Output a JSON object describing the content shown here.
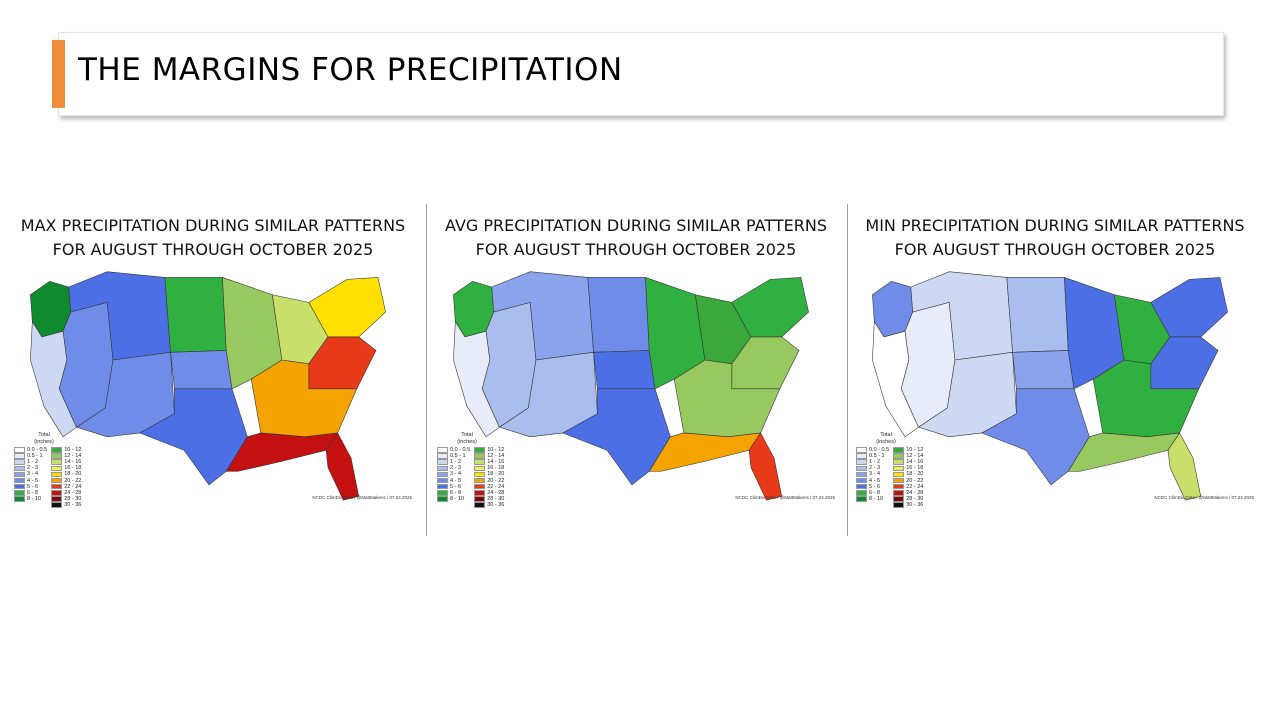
{
  "slide": {
    "title": "THE MARGINS FOR PRECIPITATION",
    "accent_color": "#f08c3a"
  },
  "legend": {
    "title_line1": "Total",
    "title_line2": "(inches)",
    "bins": [
      {
        "label": "0.0 - 0.5",
        "color": "#ffffff"
      },
      {
        "label": "0.5 - 1",
        "color": "#e7ecf8"
      },
      {
        "label": "1 - 2",
        "color": "#cdd8f2"
      },
      {
        "label": "2 - 3",
        "color": "#a9bdee"
      },
      {
        "label": "3 - 4",
        "color": "#8aa3ec"
      },
      {
        "label": "4 - 5",
        "color": "#6f8ce8"
      },
      {
        "label": "5 - 6",
        "color": "#4c6fe6"
      },
      {
        "label": "6 - 8",
        "color": "#30b040"
      },
      {
        "label": "8 - 10",
        "color": "#138a2c"
      },
      {
        "label": "10 - 12",
        "color": "#3aa83a"
      },
      {
        "label": "12 - 14",
        "color": "#98c860"
      },
      {
        "label": "14 - 16",
        "color": "#c8e06a"
      },
      {
        "label": "16 - 18",
        "color": "#eaf05a"
      },
      {
        "label": "18 - 20",
        "color": "#ffe000"
      },
      {
        "label": "20 - 22",
        "color": "#f4a300"
      },
      {
        "label": "22 - 24",
        "color": "#e83a18"
      },
      {
        "label": "24 - 28",
        "color": "#c41010"
      },
      {
        "label": "28 - 30",
        "color": "#7a0a0a"
      },
      {
        "label": "30 - 36",
        "color": "#111111"
      }
    ]
  },
  "panels": [
    {
      "title_line1": "MAX PRECIPITATION DURING SIMILAR PATTERNS",
      "title_line2": "FOR AUGUST THROUGH OCTOBER 2025",
      "credit": "NCDC ClimDiv Data / @MattMakens / 07.24.2025",
      "regions": {
        "pacific_nw": "#0f8a2e",
        "west_coast": "#cdd8f2",
        "great_basin": "#6f8ce8",
        "rockies": "#4c6fe6",
        "plains_north": "#30b040",
        "plains_south": "#6f8ce8",
        "midwest": "#98c860",
        "great_lakes": "#c8e06a",
        "northeast": "#ffe000",
        "southeast": "#f4a300",
        "gulf": "#c41010",
        "florida": "#c41010",
        "texas": "#4c6fe6",
        "southwest": "#6f8ce8",
        "mid_atlantic": "#e83a18"
      }
    },
    {
      "title_line1": "AVG PRECIPITATION DURING SIMILAR PATTERNS",
      "title_line2": "FOR AUGUST THROUGH OCTOBER 2025",
      "credit": "NCDC ClimDiv Data / @MattMakens / 07.24.2025",
      "regions": {
        "pacific_nw": "#30b040",
        "west_coast": "#e7ecf8",
        "great_basin": "#a9bdee",
        "rockies": "#8aa3ec",
        "plains_north": "#6f8ce8",
        "plains_south": "#4c6fe6",
        "midwest": "#30b040",
        "great_lakes": "#3aa83a",
        "northeast": "#30b040",
        "southeast": "#98c860",
        "gulf": "#f4a300",
        "florida": "#e83a18",
        "texas": "#4c6fe6",
        "southwest": "#a9bdee",
        "mid_atlantic": "#98c860"
      }
    },
    {
      "title_line1": "MIN PRECIPITATION DURING SIMILAR PATTERNS",
      "title_line2": "FOR AUGUST THROUGH OCTOBER 2025",
      "credit": "NCDC ClimDiv Data / @MattMakens / 07.24.2025",
      "regions": {
        "pacific_nw": "#6f8ce8",
        "west_coast": "#ffffff",
        "great_basin": "#e7ecf8",
        "rockies": "#cdd8f2",
        "plains_north": "#a9bdee",
        "plains_south": "#8aa3ec",
        "midwest": "#4c6fe6",
        "great_lakes": "#30b040",
        "northeast": "#4c6fe6",
        "southeast": "#30b040",
        "gulf": "#98c860",
        "florida": "#c8e06a",
        "texas": "#6f8ce8",
        "southwest": "#cdd8f2",
        "mid_atlantic": "#4c6fe6"
      }
    }
  ]
}
